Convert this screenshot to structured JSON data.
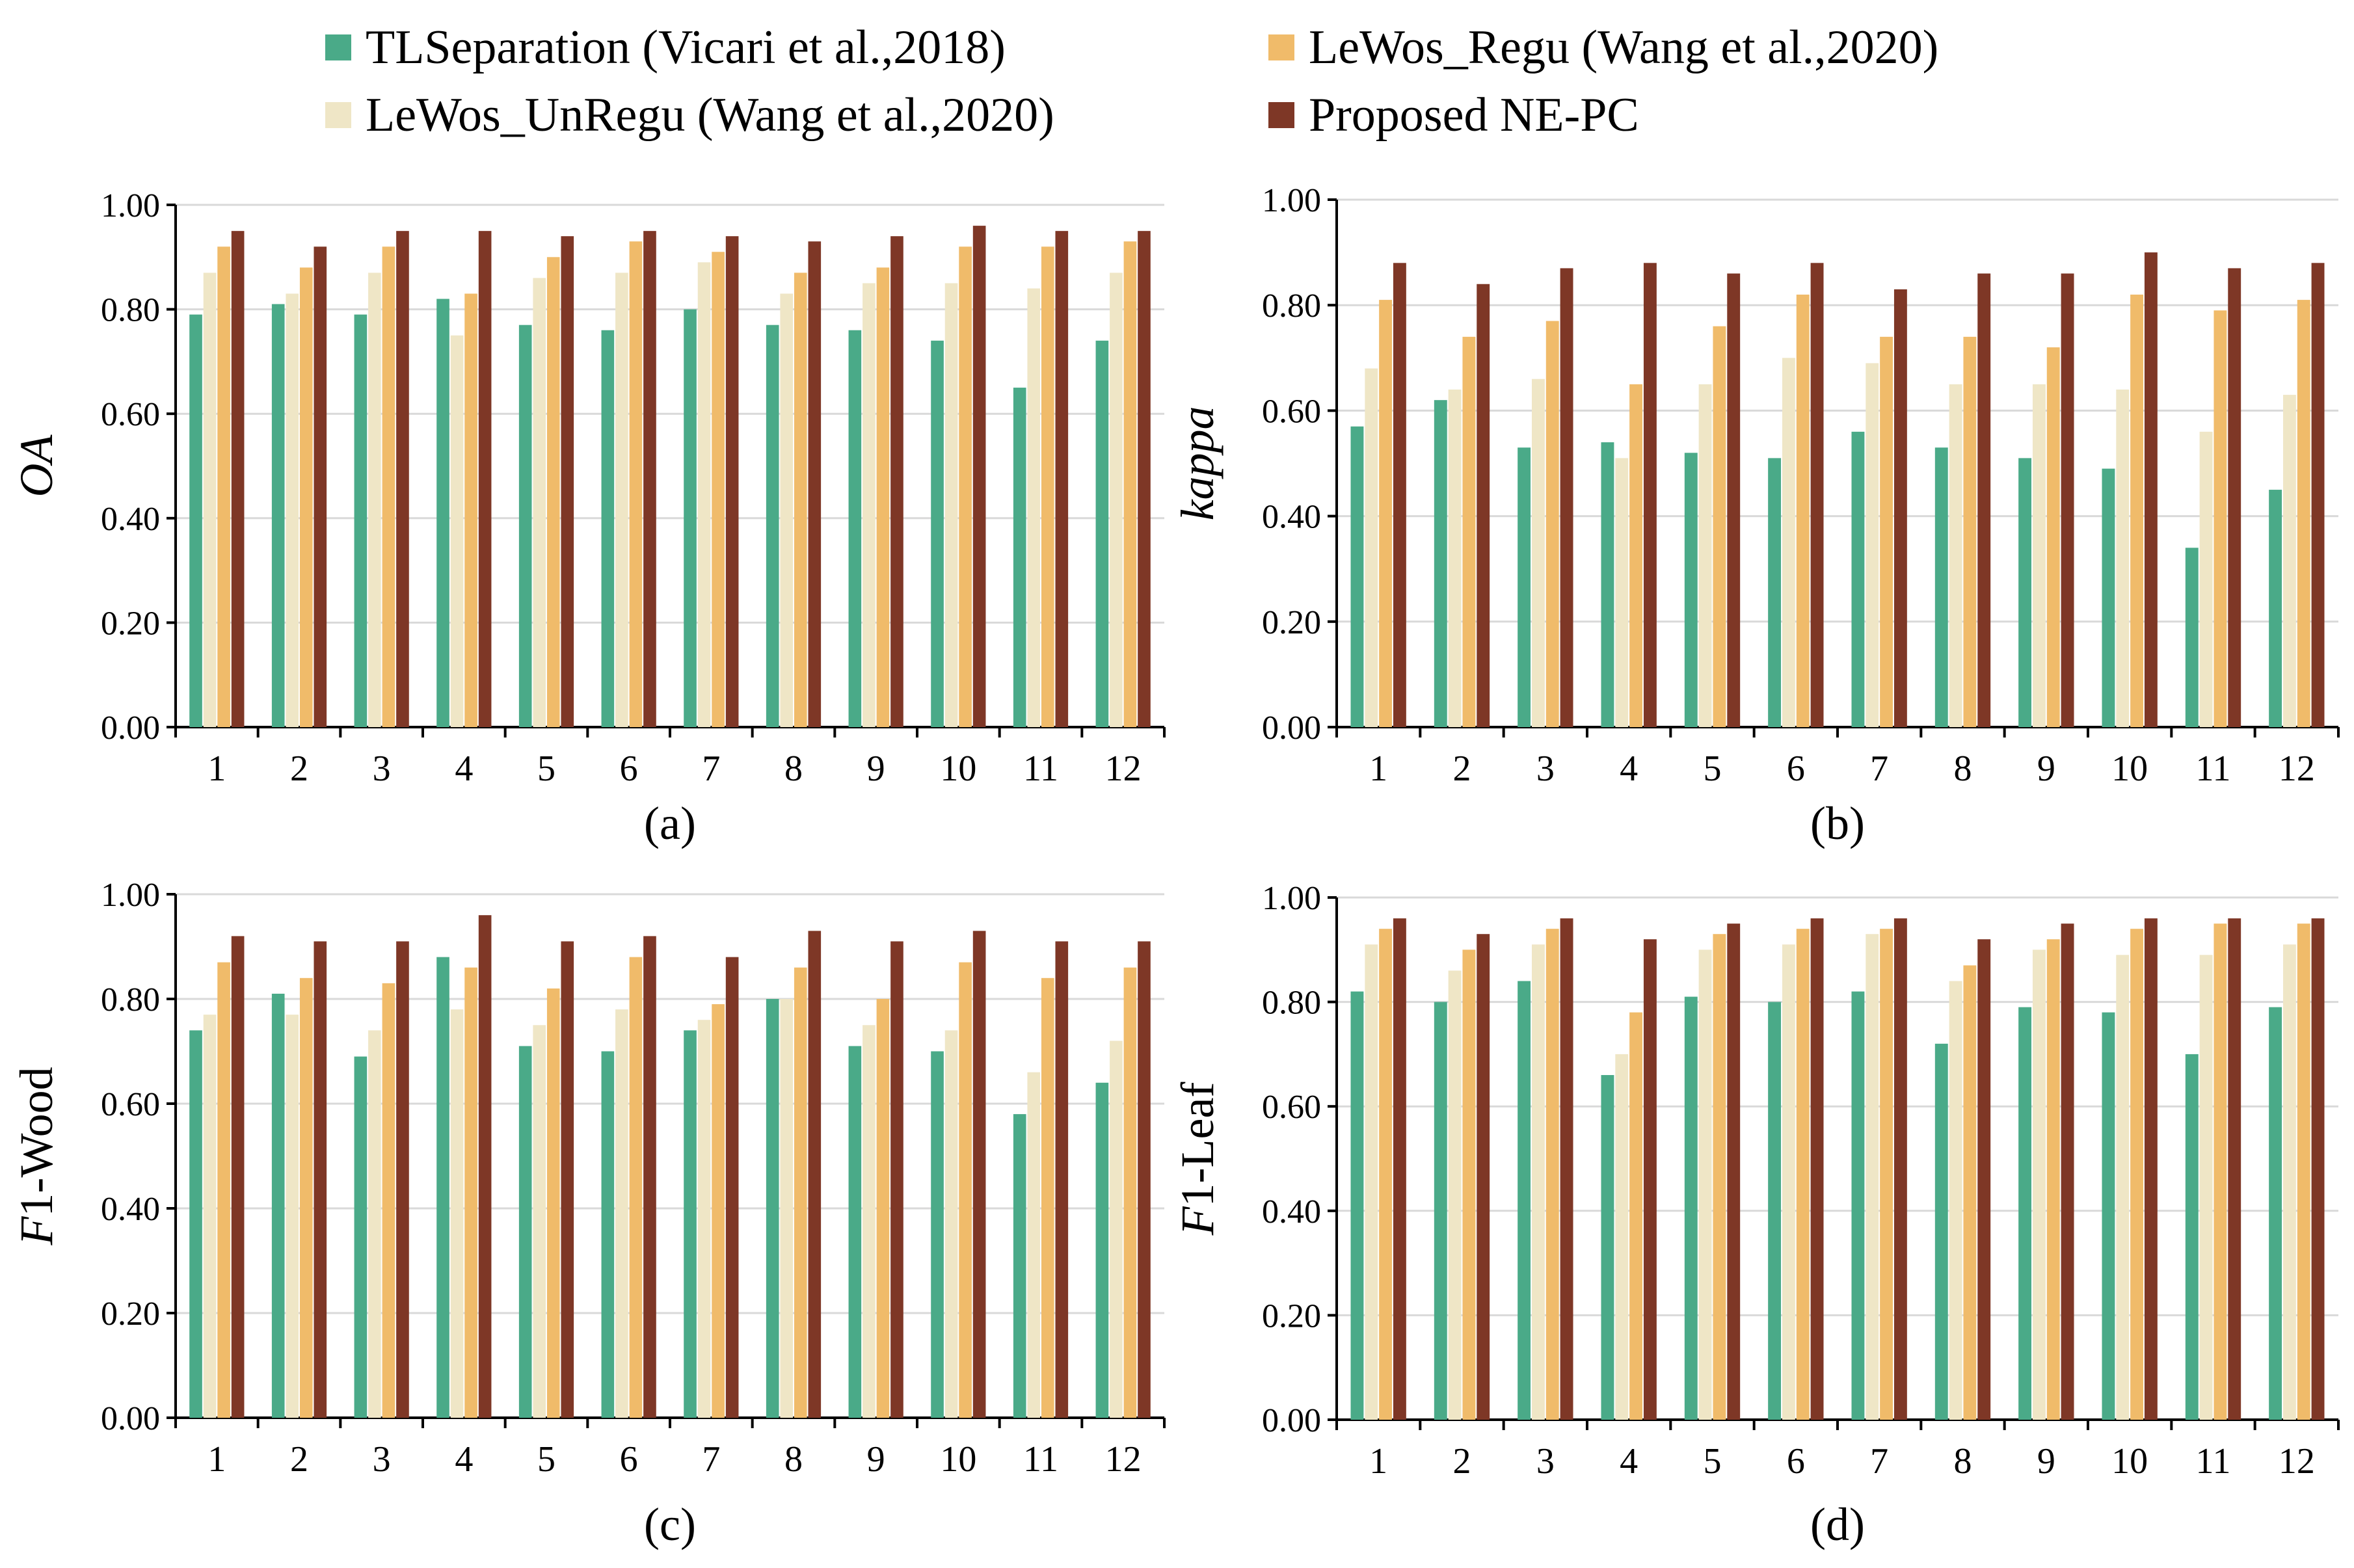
{
  "legend": [
    {
      "label": "TLSeparation (Vicari et al.,2018)",
      "color": "#4aaa88"
    },
    {
      "label": "LeWos_Regu (Wang et al.,2020)",
      "color": "#f0bb6a"
    },
    {
      "label": "LeWos_UnRegu (Wang et al.,2020)",
      "color": "#efe6c6"
    },
    {
      "label": "Proposed NE-PC",
      "color": "#7e3726"
    }
  ],
  "chart_data": [
    {
      "type": "bar",
      "panel_label": "(a)",
      "ylabel": "OA",
      "ylabel_italic_part": "OA",
      "ylabel_rest": "",
      "ylim": [
        0,
        1
      ],
      "yticks": [
        "0.00",
        "0.20",
        "0.40",
        "0.60",
        "0.80",
        "1.00"
      ],
      "categories": [
        "1",
        "2",
        "3",
        "4",
        "5",
        "6",
        "7",
        "8",
        "9",
        "10",
        "11",
        "12"
      ],
      "series": [
        {
          "name": "TLSeparation (Vicari et al.,2018)",
          "color": "#4aaa88",
          "values": [
            0.79,
            0.81,
            0.79,
            0.82,
            0.77,
            0.76,
            0.8,
            0.77,
            0.76,
            0.74,
            0.65,
            0.74
          ]
        },
        {
          "name": "LeWos_UnRegu (Wang et al.,2020)",
          "color": "#efe6c6",
          "values": [
            0.87,
            0.83,
            0.87,
            0.75,
            0.86,
            0.87,
            0.89,
            0.83,
            0.85,
            0.85,
            0.84,
            0.87
          ]
        },
        {
          "name": "LeWos_Regu (Wang et al.,2020)",
          "color": "#f0bb6a",
          "values": [
            0.92,
            0.88,
            0.92,
            0.83,
            0.9,
            0.93,
            0.91,
            0.87,
            0.88,
            0.92,
            0.92,
            0.93
          ]
        },
        {
          "name": "Proposed NE-PC",
          "color": "#7e3726",
          "values": [
            0.95,
            0.92,
            0.95,
            0.95,
            0.94,
            0.95,
            0.94,
            0.93,
            0.94,
            0.96,
            0.95,
            0.95
          ]
        }
      ]
    },
    {
      "type": "bar",
      "panel_label": "(b)",
      "ylabel": "kappa",
      "ylabel_italic_part": "kappa",
      "ylabel_rest": "",
      "ylim": [
        0,
        1
      ],
      "yticks": [
        "0.00",
        "0.20",
        "0.40",
        "0.60",
        "0.80",
        "1.00"
      ],
      "categories": [
        "1",
        "2",
        "3",
        "4",
        "5",
        "6",
        "7",
        "8",
        "9",
        "10",
        "11",
        "12"
      ],
      "series": [
        {
          "name": "TLSeparation (Vicari et al.,2018)",
          "color": "#4aaa88",
          "values": [
            0.57,
            0.62,
            0.53,
            0.54,
            0.52,
            0.51,
            0.56,
            0.53,
            0.51,
            0.49,
            0.34,
            0.45
          ]
        },
        {
          "name": "LeWos_UnRegu (Wang et al.,2020)",
          "color": "#efe6c6",
          "values": [
            0.68,
            0.64,
            0.66,
            0.51,
            0.65,
            0.7,
            0.69,
            0.65,
            0.65,
            0.64,
            0.56,
            0.63
          ]
        },
        {
          "name": "LeWos_Regu (Wang et al.,2020)",
          "color": "#f0bb6a",
          "values": [
            0.81,
            0.74,
            0.77,
            0.65,
            0.76,
            0.82,
            0.74,
            0.74,
            0.72,
            0.82,
            0.79,
            0.81
          ]
        },
        {
          "name": "Proposed NE-PC",
          "color": "#7e3726",
          "values": [
            0.88,
            0.84,
            0.87,
            0.88,
            0.86,
            0.88,
            0.83,
            0.86,
            0.86,
            0.9,
            0.87,
            0.88
          ]
        }
      ]
    },
    {
      "type": "bar",
      "panel_label": "(c)",
      "ylabel": "F1-Wood",
      "ylabel_italic_part": "F",
      "ylabel_rest": "1-Wood",
      "ylim": [
        0,
        1
      ],
      "yticks": [
        "0.00",
        "0.20",
        "0.40",
        "0.60",
        "0.80",
        "1.00"
      ],
      "categories": [
        "1",
        "2",
        "3",
        "4",
        "5",
        "6",
        "7",
        "8",
        "9",
        "10",
        "11",
        "12"
      ],
      "series": [
        {
          "name": "TLSeparation (Vicari et al.,2018)",
          "color": "#4aaa88",
          "values": [
            0.74,
            0.81,
            0.69,
            0.88,
            0.71,
            0.7,
            0.74,
            0.8,
            0.71,
            0.7,
            0.58,
            0.64
          ]
        },
        {
          "name": "LeWos_UnRegu (Wang et al.,2020)",
          "color": "#efe6c6",
          "values": [
            0.77,
            0.77,
            0.74,
            0.78,
            0.75,
            0.78,
            0.76,
            0.8,
            0.75,
            0.74,
            0.66,
            0.72
          ]
        },
        {
          "name": "LeWos_Regu (Wang et al.,2020)",
          "color": "#f0bb6a",
          "values": [
            0.87,
            0.84,
            0.83,
            0.86,
            0.82,
            0.88,
            0.79,
            0.86,
            0.8,
            0.87,
            0.84,
            0.86
          ]
        },
        {
          "name": "Proposed NE-PC",
          "color": "#7e3726",
          "values": [
            0.92,
            0.91,
            0.91,
            0.96,
            0.91,
            0.92,
            0.88,
            0.93,
            0.91,
            0.93,
            0.91,
            0.91
          ]
        }
      ]
    },
    {
      "type": "bar",
      "panel_label": "(d)",
      "ylabel": "F1-Leaf",
      "ylabel_italic_part": "F",
      "ylabel_rest": "1-Leaf",
      "ylim": [
        0,
        1
      ],
      "yticks": [
        "0.00",
        "0.20",
        "0.40",
        "0.60",
        "0.80",
        "1.00"
      ],
      "categories": [
        "1",
        "2",
        "3",
        "4",
        "5",
        "6",
        "7",
        "8",
        "9",
        "10",
        "11",
        "12"
      ],
      "series": [
        {
          "name": "TLSeparation (Vicari et al.,2018)",
          "color": "#4aaa88",
          "values": [
            0.82,
            0.8,
            0.84,
            0.66,
            0.81,
            0.8,
            0.82,
            0.72,
            0.79,
            0.78,
            0.7,
            0.79
          ]
        },
        {
          "name": "LeWos_UnRegu (Wang et al.,2020)",
          "color": "#efe6c6",
          "values": [
            0.91,
            0.86,
            0.91,
            0.7,
            0.9,
            0.91,
            0.93,
            0.84,
            0.9,
            0.89,
            0.89,
            0.91
          ]
        },
        {
          "name": "LeWos_Regu (Wang et al.,2020)",
          "color": "#f0bb6a",
          "values": [
            0.94,
            0.9,
            0.94,
            0.78,
            0.93,
            0.94,
            0.94,
            0.87,
            0.92,
            0.94,
            0.95,
            0.95
          ]
        },
        {
          "name": "Proposed NE-PC",
          "color": "#7e3726",
          "values": [
            0.96,
            0.93,
            0.96,
            0.92,
            0.95,
            0.96,
            0.96,
            0.92,
            0.95,
            0.96,
            0.96,
            0.96
          ]
        }
      ]
    }
  ]
}
